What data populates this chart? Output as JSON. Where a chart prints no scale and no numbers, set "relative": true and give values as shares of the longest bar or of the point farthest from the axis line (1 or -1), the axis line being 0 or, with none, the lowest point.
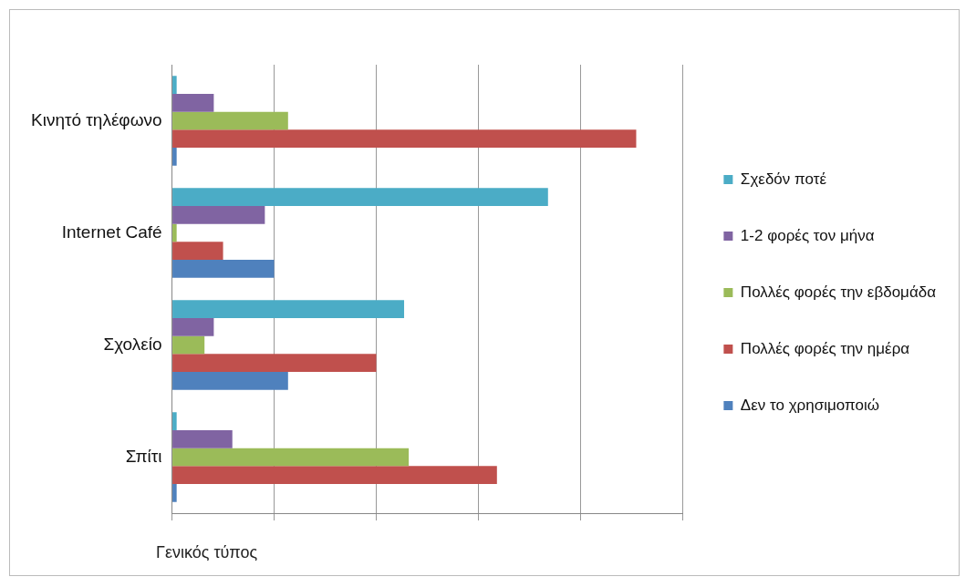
{
  "chart_data": {
    "type": "bar",
    "orientation": "horizontal",
    "relative": true,
    "grid": "x",
    "legend": "right",
    "categories": [
      "Κινητό τηλέφωνο",
      "Internet Café",
      "Σχολείο",
      "Σπίτι"
    ],
    "series": [
      {
        "name": "Σχεδόν ποτέ",
        "color": "#4bacc6",
        "values": [
          0.01,
          0.81,
          0.5,
          0.01
        ]
      },
      {
        "name": "1-2 φορές τον μήνα",
        "color": "#8064a2",
        "values": [
          0.09,
          0.2,
          0.09,
          0.13
        ]
      },
      {
        "name": "Πολλές φορές την εβδομάδα",
        "color": "#9bbb59",
        "values": [
          0.25,
          0.01,
          0.07,
          0.51
        ]
      },
      {
        "name": "Πολλές φορές την ημέρα",
        "color": "#c0504d",
        "values": [
          1,
          0.11,
          0.44,
          0.7
        ]
      },
      {
        "name": "Δεν το χρησιμοποιώ",
        "color": "#4f81bd",
        "values": [
          0.01,
          0.22,
          0.25,
          0.01
        ]
      }
    ],
    "annotations": [
      "Γενικός τύπος"
    ]
  }
}
